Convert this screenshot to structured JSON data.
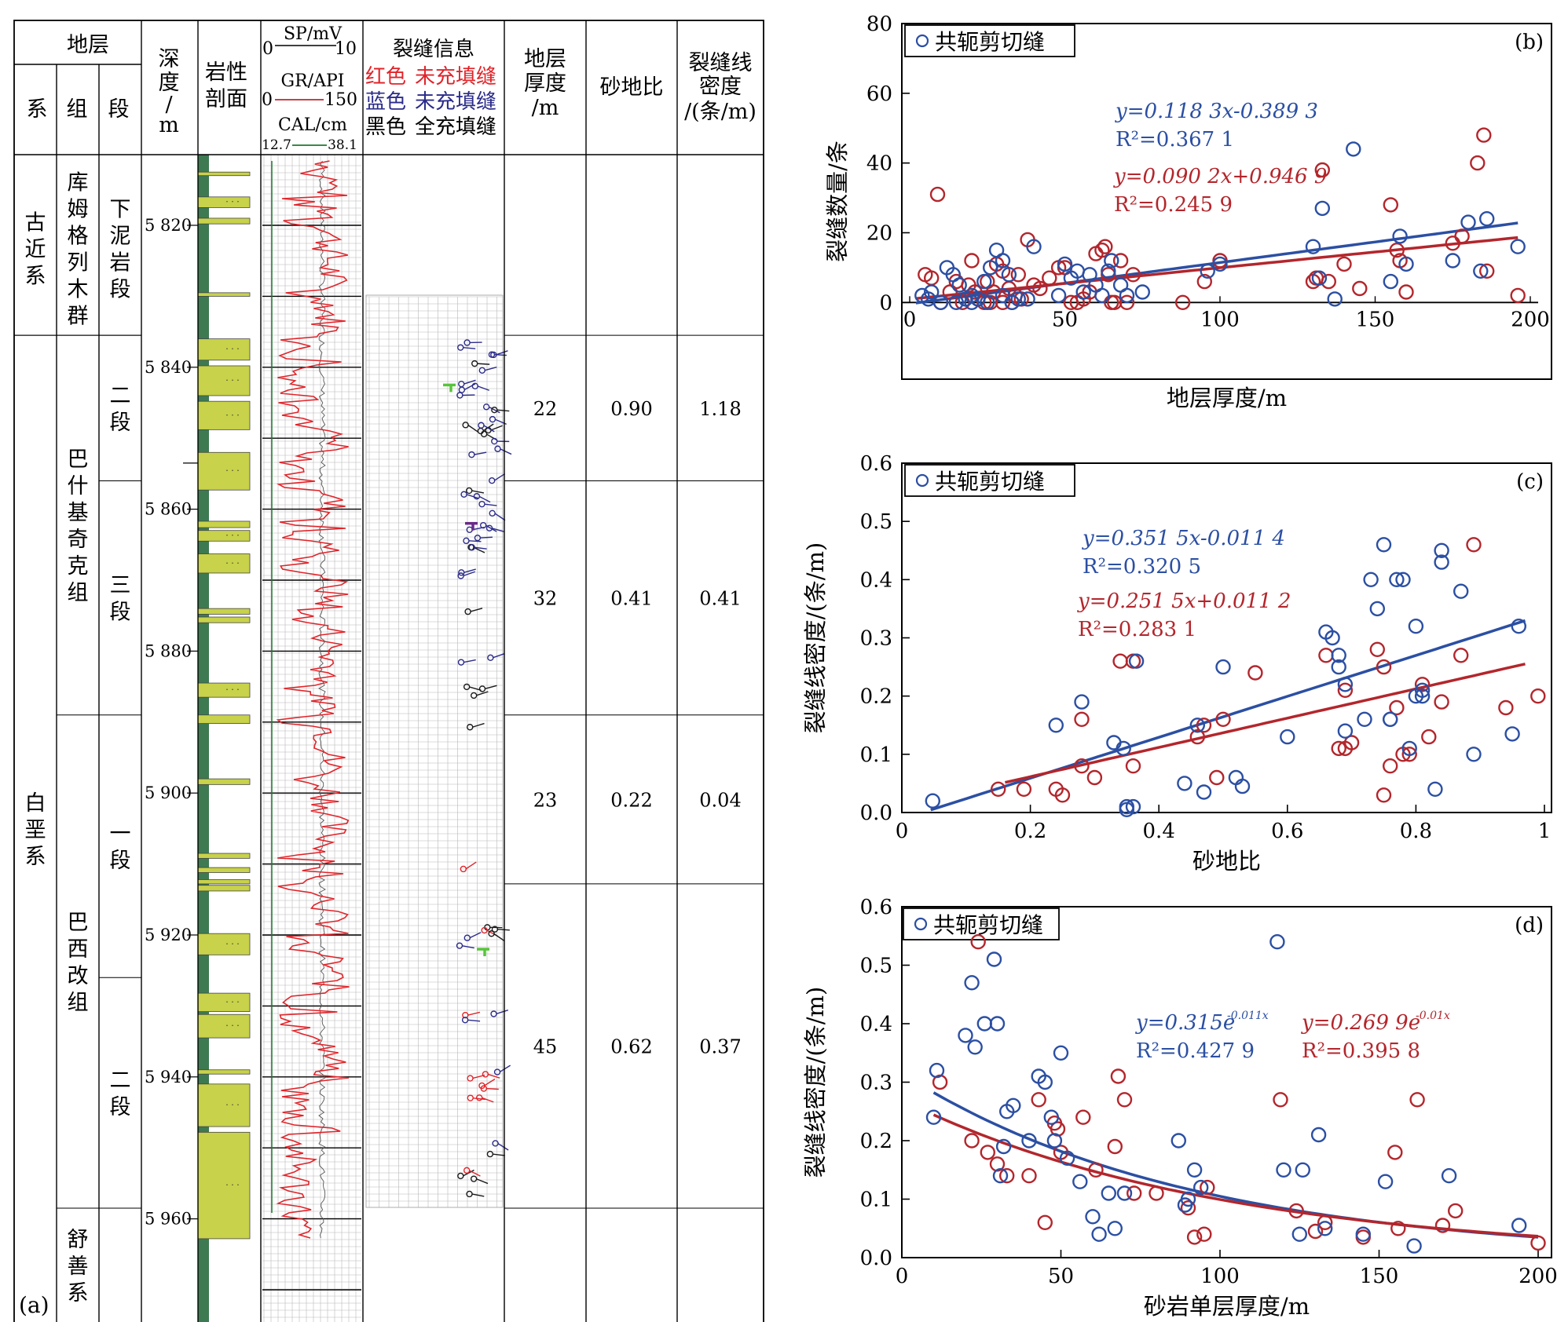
{
  "colors": {
    "blue": "#2b4fa3",
    "red": "#b3262c",
    "green_curve": "#1e7a2e",
    "sand": "#c8d24a",
    "mudstone_bar": "#3d7a52",
    "grid": "#b8b8b8",
    "gr_curve": "#e0242a",
    "filled_black": "#1a1a1a",
    "fracture_green": "#58c43c",
    "fracture_purple": "#6a2a8a"
  },
  "panel_a": {
    "label": "(a)",
    "header": {
      "stratum": "地层",
      "system": "系",
      "formation": "组",
      "member": "段",
      "depth": [
        "深",
        "度",
        "/",
        "m"
      ],
      "lithology": [
        "岩性",
        "剖面"
      ],
      "sp": "SP/mV",
      "sp_min": "0",
      "sp_max": "10",
      "gr": "GR/API",
      "gr_min": "0",
      "gr_max": "150",
      "cal": "CAL/cm",
      "cal_min": "12.7",
      "cal_max": "38.1",
      "fracture_info": "裂缝信息",
      "red_legend": [
        "红色",
        "未充填缝"
      ],
      "blue_legend": [
        "蓝色",
        "未充填缝"
      ],
      "black_legend": [
        "黑色",
        "全充填缝"
      ],
      "thickness": [
        "地层",
        "厚度",
        "/m"
      ],
      "sand_ratio": "砂地比",
      "density": [
        "裂缝线",
        "密度",
        "/(条/m)"
      ]
    },
    "systems": [
      {
        "name": "古近系",
        "top": 5811,
        "bottom": 5835.5
      },
      {
        "name": "白垩系",
        "top": 5835.5,
        "bottom": 5976.5
      }
    ],
    "formations": [
      {
        "name": "库姆格列木群",
        "top": 5811,
        "bottom": 5835.5
      },
      {
        "name": "巴什基奇克组",
        "top": 5835.5,
        "bottom": 5889
      },
      {
        "name": "巴西改组",
        "top": 5889,
        "bottom": 5958.5
      },
      {
        "name": "舒善系",
        "top": 5958.5,
        "bottom": 5976.5
      }
    ],
    "members": [
      {
        "name": "下泥岩段",
        "top": 5811,
        "bottom": 5835.5
      },
      {
        "name": "二段",
        "top": 5835.5,
        "bottom": 5856
      },
      {
        "name": "三段",
        "top": 5856,
        "bottom": 5889
      },
      {
        "name": "一段",
        "top": 5889,
        "bottom": 5926
      },
      {
        "name": "二段",
        "top": 5926,
        "bottom": 5958.5
      }
    ],
    "depth_ticks": [
      "5 820",
      "5 840",
      "5 860",
      "5 880",
      "5 900",
      "5 920",
      "5 940",
      "5 960"
    ],
    "intervals": [
      {
        "thickness": "22",
        "sand_ratio": "0.90",
        "density": "1.18",
        "top": 5835.5,
        "bottom": 5856
      },
      {
        "thickness": "32",
        "sand_ratio": "0.41",
        "density": "0.41",
        "top": 5856,
        "bottom": 5889
      },
      {
        "thickness": "23",
        "sand_ratio": "0.22",
        "density": "0.04",
        "top": 5889,
        "bottom": 5912.8
      },
      {
        "thickness": "45",
        "sand_ratio": "0.62",
        "density": "0.37",
        "top": 5912.8,
        "bottom": 5958.5
      }
    ],
    "sand_layers": [
      [
        5812.5,
        5813.0
      ],
      [
        5816.0,
        5817.5
      ],
      [
        5819.0,
        5819.8
      ],
      [
        5829.5,
        5830.0
      ],
      [
        5836.0,
        5839.0
      ],
      [
        5839.8,
        5844.0
      ],
      [
        5844.8,
        5848.8
      ],
      [
        5852.0,
        5857.3
      ],
      [
        5861.7,
        5862.6
      ],
      [
        5863.0,
        5864.5
      ],
      [
        5866.3,
        5869.0
      ],
      [
        5874.0,
        5874.8
      ],
      [
        5875.2,
        5876.0
      ],
      [
        5884.5,
        5886.5
      ],
      [
        5889.0,
        5890.2
      ],
      [
        5898.0,
        5898.8
      ],
      [
        5908.5,
        5909.2
      ],
      [
        5910.5,
        5911.2
      ],
      [
        5912.2,
        5912.8
      ],
      [
        5913.0,
        5913.8
      ],
      [
        5919.8,
        5922.8
      ],
      [
        5928.2,
        5930.8
      ],
      [
        5931.2,
        5934.5
      ],
      [
        5939.0,
        5939.6
      ],
      [
        5941.0,
        5947.0
      ],
      [
        5947.8,
        5962.8
      ]
    ]
  },
  "chart_data": [
    {
      "panel": "(b)",
      "type": "scatter",
      "title": "",
      "legend": "共轭剪切缝",
      "legend_position": "top-left",
      "xlabel": "地层厚度/m",
      "ylabel": "裂缝数量/条",
      "xlim": [
        0,
        200
      ],
      "ylim": [
        -22,
        80
      ],
      "xticks": [
        0,
        50,
        100,
        150,
        200
      ],
      "yticks": [
        0,
        20,
        40,
        60,
        80
      ],
      "xtick_labels": [
        "0",
        "50",
        "100",
        "150",
        "200"
      ],
      "ytick_labels": [
        "0",
        "20",
        "40",
        "60",
        "80"
      ],
      "fit_type": "linear",
      "series": [
        {
          "color_key": "blue",
          "fit": {
            "a": 0.1183,
            "b": -0.3893
          },
          "eq": "y=0.118 3x-0.389 3",
          "r2": "R²=0.367 1",
          "x": [
            4,
            6,
            7,
            10,
            12,
            14,
            15,
            16,
            18,
            20,
            20,
            22,
            24,
            25,
            26,
            28,
            30,
            30,
            32,
            33,
            35,
            38,
            40,
            48,
            50,
            52,
            54,
            56,
            58,
            60,
            62,
            64,
            65,
            68,
            70,
            75,
            96,
            100,
            130,
            132,
            133,
            137,
            143,
            155,
            158,
            160,
            175,
            180,
            184,
            186,
            196
          ],
          "y": [
            2,
            1,
            3,
            0,
            10,
            8,
            0,
            5,
            1,
            2,
            0,
            1,
            6,
            0,
            10,
            15,
            12,
            2,
            8,
            0,
            1,
            1,
            16,
            2,
            11,
            7,
            9,
            3,
            8,
            5,
            2,
            9,
            12,
            5,
            2,
            3,
            9,
            11,
            16,
            7,
            27,
            1,
            44,
            6,
            19,
            11,
            12,
            23,
            9,
            24,
            16
          ]
        },
        {
          "color_key": "red",
          "fit": {
            "a": 0.0902,
            "b": 0.9469
          },
          "eq": "y=0.090 2x+0.946 9",
          "r2": "R²=0.245 9",
          "x": [
            5,
            7,
            9,
            10,
            13,
            15,
            17,
            19,
            20,
            21,
            22,
            24,
            25,
            26,
            27,
            28,
            30,
            30,
            32,
            33,
            34,
            35,
            36,
            38,
            40,
            42,
            45,
            48,
            50,
            52,
            54,
            56,
            58,
            60,
            62,
            63,
            64,
            65,
            66,
            68,
            70,
            72,
            88,
            95,
            100,
            130,
            131,
            133,
            135,
            140,
            145,
            155,
            157,
            158,
            160,
            175,
            178,
            183,
            185,
            186,
            196
          ],
          "y": [
            8,
            7,
            31,
            0,
            3,
            6,
            0,
            5,
            12,
            3,
            1,
            0,
            6,
            0,
            3,
            11,
            9,
            0,
            4,
            0,
            2,
            8,
            1,
            18,
            5,
            4,
            7,
            10,
            10,
            0,
            0,
            1,
            3,
            14,
            15,
            16,
            8,
            0,
            0,
            12,
            0,
            8,
            0,
            6,
            12,
            6,
            7,
            38,
            6,
            11,
            4,
            28,
            15,
            12,
            3,
            17,
            19,
            40,
            48,
            9,
            2
          ]
        }
      ]
    },
    {
      "panel": "(c)",
      "type": "scatter",
      "title": "",
      "legend": "共轭剪切缝",
      "legend_position": "top-left",
      "xlabel": "砂地比",
      "ylabel": "裂缝线密度/(条/m)",
      "xlim": [
        0,
        1
      ],
      "ylim": [
        0,
        0.6
      ],
      "xticks": [
        0,
        0.2,
        0.4,
        0.6,
        0.8,
        1.0
      ],
      "yticks": [
        0,
        0.1,
        0.2,
        0.3,
        0.4,
        0.5,
        0.6
      ],
      "xtick_labels": [
        "0",
        "0.2",
        "0.4",
        "0.6",
        "0.8",
        "1"
      ],
      "ytick_labels": [
        "0.0",
        "0.1",
        "0.2",
        "0.3",
        "0.4",
        "0.5",
        "0.6"
      ],
      "fit_type": "linear",
      "fit_range": [
        0.045,
        0.97
      ],
      "series": [
        {
          "color_key": "blue",
          "fit": {
            "a": 0.3515,
            "b": -0.0114
          },
          "eq": "y=0.351 5x-0.011 4",
          "r2": "R²=0.320 5",
          "x": [
            0.048,
            0.24,
            0.28,
            0.33,
            0.345,
            0.35,
            0.35,
            0.36,
            0.365,
            0.44,
            0.46,
            0.47,
            0.5,
            0.52,
            0.53,
            0.6,
            0.66,
            0.67,
            0.68,
            0.68,
            0.69,
            0.69,
            0.72,
            0.73,
            0.74,
            0.75,
            0.76,
            0.76,
            0.77,
            0.78,
            0.79,
            0.8,
            0.8,
            0.81,
            0.81,
            0.83,
            0.84,
            0.84,
            0.87,
            0.89,
            0.95,
            0.96
          ],
          "y": [
            0.02,
            0.15,
            0.19,
            0.12,
            0.11,
            0.01,
            0.005,
            0.01,
            0.26,
            0.05,
            0.15,
            0.035,
            0.25,
            0.06,
            0.045,
            0.13,
            0.31,
            0.3,
            0.27,
            0.25,
            0.22,
            0.14,
            0.16,
            0.4,
            0.35,
            0.46,
            0.16,
            0.16,
            0.4,
            0.4,
            0.11,
            0.32,
            0.2,
            0.2,
            0.21,
            0.04,
            0.45,
            0.43,
            0.38,
            0.1,
            0.135,
            0.32
          ]
        },
        {
          "color_key": "red",
          "fit": {
            "a": 0.2515,
            "b": 0.0112
          },
          "eq": "y=0.251 5x+0.011 2",
          "r2": "R²=0.283 1",
          "x": [
            0.15,
            0.19,
            0.24,
            0.25,
            0.28,
            0.28,
            0.3,
            0.34,
            0.36,
            0.36,
            0.46,
            0.47,
            0.49,
            0.5,
            0.55,
            0.66,
            0.68,
            0.69,
            0.69,
            0.7,
            0.74,
            0.75,
            0.75,
            0.76,
            0.77,
            0.78,
            0.79,
            0.81,
            0.82,
            0.84,
            0.87,
            0.89,
            0.94,
            0.99
          ],
          "y": [
            0.04,
            0.04,
            0.04,
            0.03,
            0.16,
            0.08,
            0.06,
            0.26,
            0.26,
            0.08,
            0.13,
            0.15,
            0.06,
            0.16,
            0.24,
            0.27,
            0.11,
            0.11,
            0.21,
            0.12,
            0.28,
            0.25,
            0.03,
            0.08,
            0.18,
            0.1,
            0.1,
            0.22,
            0.13,
            0.19,
            0.27,
            0.46,
            0.18,
            0.2
          ]
        }
      ]
    },
    {
      "panel": "(d)",
      "type": "scatter",
      "title": "",
      "legend": "共轭剪切缝",
      "legend_position": "top-left",
      "xlabel": "砂岩单层厚度/m",
      "ylabel": "裂缝线密度/(条/m)",
      "xlim": [
        0,
        200
      ],
      "ylim": [
        0,
        0.6
      ],
      "xticks": [
        0,
        50,
        100,
        150,
        200
      ],
      "yticks": [
        0,
        0.1,
        0.2,
        0.3,
        0.4,
        0.5,
        0.6
      ],
      "xtick_labels": [
        "0",
        "50",
        "100",
        "150",
        "200"
      ],
      "ytick_labels": [
        "0.0",
        "0.1",
        "0.2",
        "0.3",
        "0.4",
        "0.5",
        "0.6"
      ],
      "fit_type": "exp",
      "fit_range": [
        10,
        200
      ],
      "series": [
        {
          "color_key": "blue",
          "fit": {
            "a": 0.315,
            "b": -0.011
          },
          "eq": "y=0.315e",
          "exponent": "-0.011x",
          "r2": "R²=0.427 9",
          "x": [
            10,
            11,
            20,
            22,
            23,
            26,
            29,
            30,
            31,
            32,
            33,
            35,
            40,
            43,
            45,
            47,
            48,
            50,
            52,
            56,
            60,
            62,
            65,
            67,
            70,
            87,
            89,
            90,
            92,
            94,
            118,
            120,
            125,
            126,
            131,
            133,
            145,
            152,
            161,
            172,
            194
          ],
          "y": [
            0.24,
            0.32,
            0.38,
            0.47,
            0.36,
            0.4,
            0.51,
            0.4,
            0.14,
            0.19,
            0.25,
            0.26,
            0.2,
            0.31,
            0.3,
            0.24,
            0.2,
            0.35,
            0.17,
            0.13,
            0.07,
            0.04,
            0.11,
            0.05,
            0.11,
            0.2,
            0.09,
            0.1,
            0.15,
            0.12,
            0.54,
            0.15,
            0.04,
            0.15,
            0.21,
            0.05,
            0.04,
            0.13,
            0.02,
            0.14,
            0.055
          ]
        },
        {
          "color_key": "red",
          "fit": {
            "a": 0.2699,
            "b": -0.01
          },
          "eq": "y=0.269 9e",
          "exponent": "-0.01x",
          "r2": "R²=0.395 8",
          "x": [
            12,
            22,
            24,
            27,
            30,
            33,
            40,
            43,
            45,
            48,
            49,
            50,
            57,
            61,
            67,
            68,
            70,
            73,
            80,
            90,
            92,
            95,
            96,
            119,
            124,
            130,
            133,
            145,
            155,
            156,
            162,
            170,
            174,
            200
          ],
          "y": [
            0.3,
            0.2,
            0.54,
            0.18,
            0.16,
            0.14,
            0.14,
            0.27,
            0.06,
            0.23,
            0.22,
            0.18,
            0.24,
            0.15,
            0.19,
            0.31,
            0.27,
            0.11,
            0.11,
            0.085,
            0.035,
            0.04,
            0.12,
            0.27,
            0.08,
            0.045,
            0.06,
            0.035,
            0.18,
            0.05,
            0.27,
            0.055,
            0.08,
            0.025
          ]
        }
      ]
    }
  ]
}
